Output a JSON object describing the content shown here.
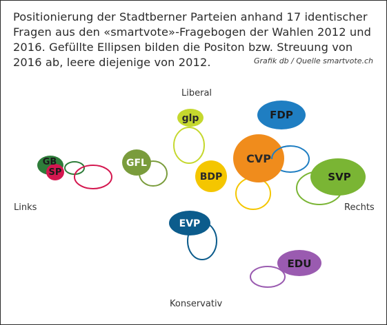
{
  "title_lines": [
    "Positionierung der Stadtberner Parteien anhand 17 identischer",
    "Fragen aus den «smartvote»-Fragebogen der Wahlen 2012 und",
    "2016. Gefüllte Ellipsen bilden die Positon bzw. Streuung von",
    "2016 ab, leere diejenige von 2012."
  ],
  "credit": "Grafik db / Quelle smartvote.ch",
  "axes": {
    "top": "Liberal",
    "bottom": "Konservativ",
    "left": "Links",
    "right": "Rechts"
  },
  "parties": [
    {
      "name": "GB",
      "color": "#2e7d3a",
      "label_color": "#1a1a1a"
    },
    {
      "name": "SP",
      "color": "#d4174f",
      "label_color": "#1a1a1a"
    },
    {
      "name": "GFL",
      "color": "#7a9c3c",
      "label_color": "#ffffff"
    },
    {
      "name": "glp",
      "color": "#c5d82e",
      "label_color": "#2a2a2a"
    },
    {
      "name": "BDP",
      "color": "#f4c600",
      "label_color": "#2a2a2a"
    },
    {
      "name": "CVP",
      "color": "#f08c1c",
      "label_color": "#2a2a2a"
    },
    {
      "name": "FDP",
      "color": "#1f7ec2",
      "label_color": "#1a1a1a"
    },
    {
      "name": "SVP",
      "color": "#7ab534",
      "label_color": "#1a1a1a"
    },
    {
      "name": "EVP",
      "color": "#0c5c8c",
      "label_color": "#ffffff"
    },
    {
      "name": "EDU",
      "color": "#9a5bb0",
      "label_color": "#1a1a1a"
    }
  ]
}
